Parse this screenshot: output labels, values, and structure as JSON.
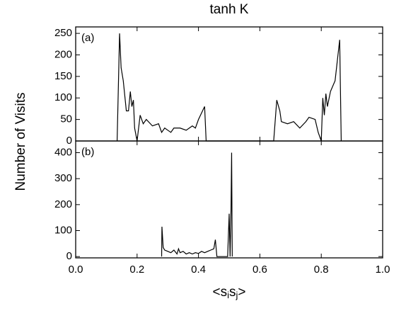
{
  "chart_data": [
    {
      "type": "line",
      "title": "tanh K",
      "panel_label": "(a)",
      "ylabel": "Number of Visits",
      "xlim": [
        0,
        1
      ],
      "ylim": [
        0,
        265
      ],
      "yticks": [
        0,
        50,
        100,
        150,
        200,
        250
      ],
      "series": [
        {
          "color": "#000000",
          "x": [
            0.135,
            0.143,
            0.148,
            0.155,
            0.165,
            0.172,
            0.178,
            0.183,
            0.188,
            0.192,
            0.2,
            0.21,
            0.22,
            0.23,
            0.25,
            0.27,
            0.28,
            0.29,
            0.3,
            0.31,
            0.32,
            0.34,
            0.36,
            0.38,
            0.39,
            0.4,
            0.42,
            0.425,
            0.645,
            0.655,
            0.665,
            0.67,
            0.69,
            0.71,
            0.73,
            0.75,
            0.76,
            0.78,
            0.79,
            0.8,
            0.805,
            0.81,
            0.815,
            0.82,
            0.83,
            0.845,
            0.86,
            0.865
          ],
          "values": [
            0,
            250,
            170,
            140,
            70,
            70,
            115,
            80,
            95,
            30,
            0,
            60,
            40,
            50,
            35,
            40,
            20,
            30,
            25,
            20,
            30,
            30,
            25,
            35,
            30,
            50,
            80,
            0,
            0,
            95,
            70,
            45,
            40,
            45,
            30,
            45,
            55,
            50,
            20,
            0,
            100,
            60,
            110,
            80,
            115,
            140,
            235,
            0
          ]
        }
      ]
    },
    {
      "type": "line",
      "panel_label": "(b)",
      "xlabel": [
        "<s",
        "i",
        "s",
        "j",
        ">"
      ],
      "xlim": [
        0,
        1
      ],
      "xticks": [
        {
          "value": 0,
          "label": "0.0"
        },
        0.2,
        0.4,
        0.6,
        0.8,
        {
          "value": 1,
          "label": "1.0"
        }
      ],
      "ylim": [
        -5,
        445
      ],
      "yticks": [
        0,
        100,
        200,
        300,
        400
      ],
      "series": [
        {
          "color": "#000000",
          "x": [
            0.28,
            0.281,
            0.285,
            0.29,
            0.3,
            0.31,
            0.32,
            0.33,
            0.335,
            0.34,
            0.35,
            0.36,
            0.37,
            0.38,
            0.39,
            0.4,
            0.41,
            0.42,
            0.43,
            0.44,
            0.45,
            0.455,
            0.46,
            0.495,
            0.5,
            0.503,
            0.506,
            0.508,
            0.51
          ],
          "values": [
            0,
            115,
            35,
            25,
            20,
            15,
            25,
            10,
            30,
            15,
            20,
            10,
            15,
            10,
            15,
            12,
            20,
            15,
            20,
            25,
            30,
            65,
            0,
            0,
            165,
            0,
            180,
            400,
            0
          ]
        }
      ]
    }
  ]
}
